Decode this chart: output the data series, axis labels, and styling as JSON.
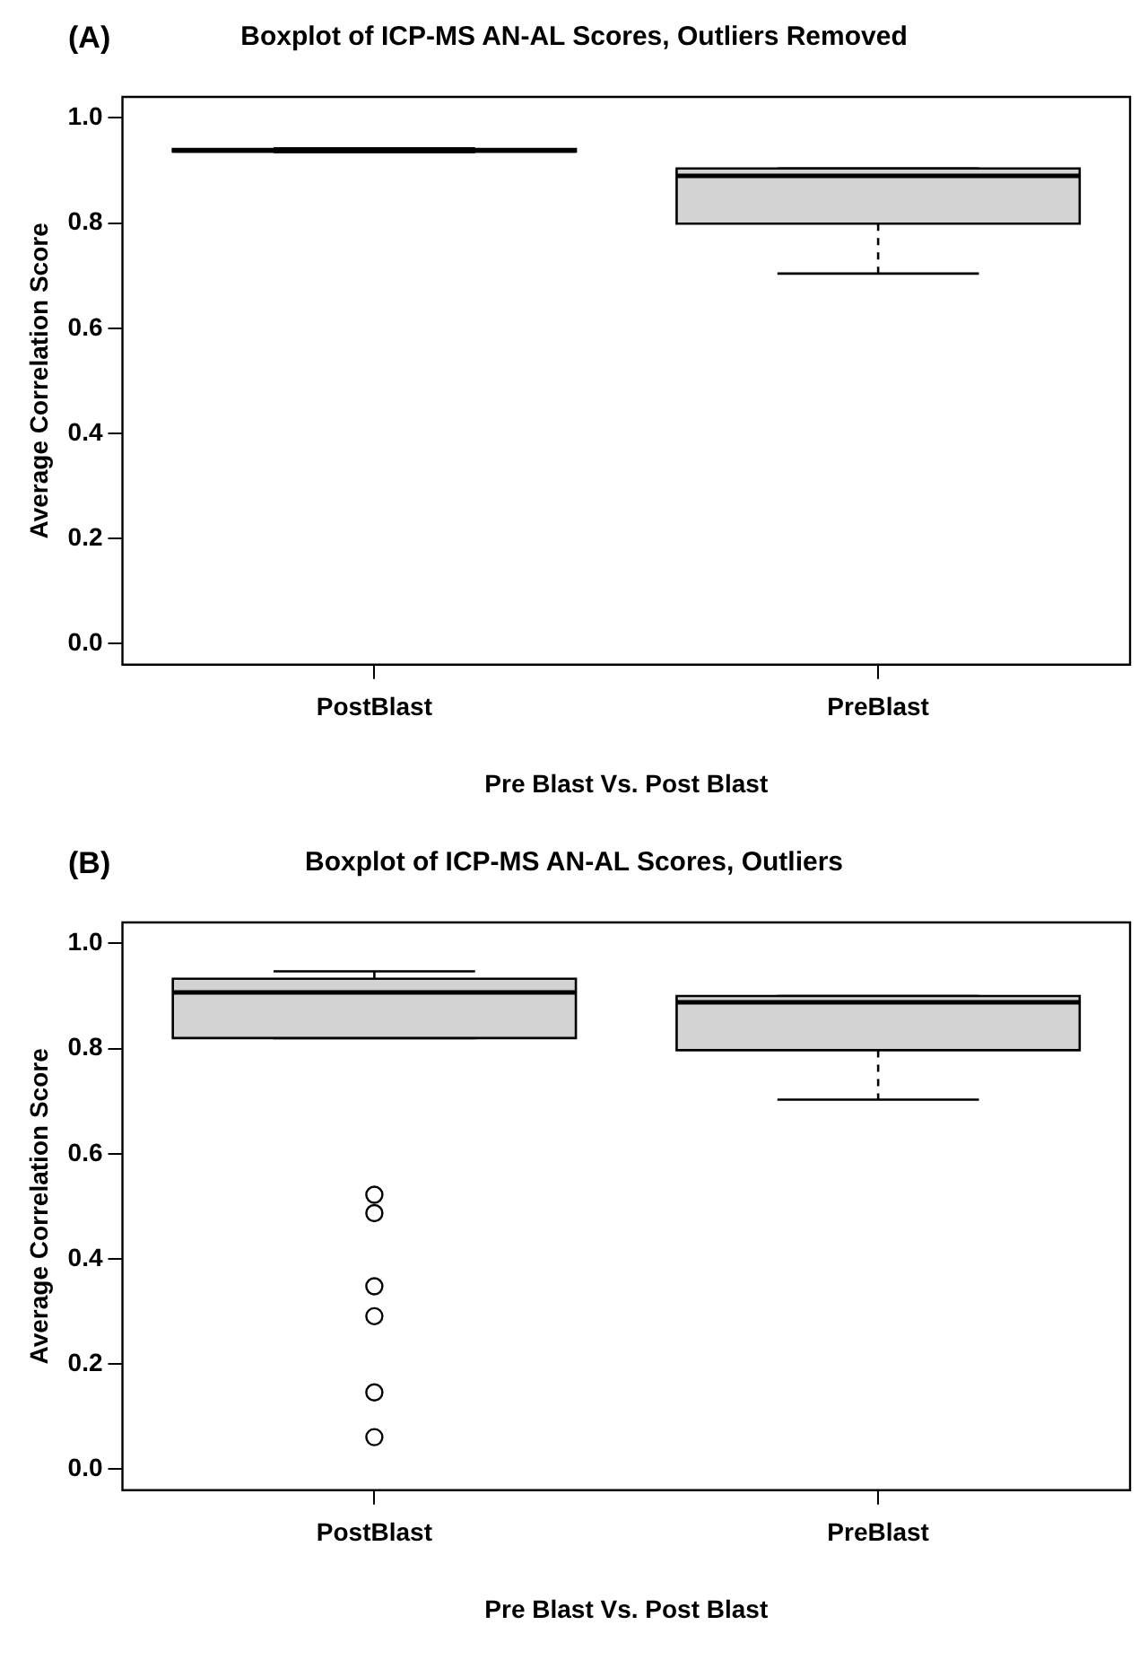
{
  "chart_data": [
    {
      "type": "box",
      "title": "Boxplot of ICP-MS AN-AL Scores, Outliers Removed",
      "annotations": [
        "(A)"
      ],
      "xlabel": "Pre Blast Vs. Post Blast",
      "ylabel": "Average Correlation Score",
      "categories": [
        "PostBlast",
        "PreBlast"
      ],
      "ylim": [
        -0.04,
        1.04
      ],
      "yticks": [
        {
          "value": 0,
          "label": "0.0"
        },
        {
          "value": 0.2,
          "label": "0.2"
        },
        {
          "value": 0.4,
          "label": "0.4"
        },
        {
          "value": 0.6,
          "label": "0.6"
        },
        {
          "value": 0.8,
          "label": "0.8"
        },
        {
          "value": 1,
          "label": "1.0"
        }
      ],
      "grid": false,
      "legend": false,
      "series": [
        {
          "color": "#d3d3d3",
          "boxes": [
            {
              "low": 0.935,
              "q1": 0.936,
              "median": 0.938,
              "q3": 0.941,
              "high": 0.942
            },
            {
              "low": 0.704,
              "q1": 0.799,
              "median": 0.89,
              "q3": 0.904,
              "high": 0.904
            }
          ]
        }
      ]
    },
    {
      "type": "box",
      "title": "Boxplot of ICP-MS AN-AL Scores, Outliers",
      "annotations": [
        "(B)"
      ],
      "xlabel": "Pre Blast Vs. Post Blast",
      "ylabel": "Average Correlation Score",
      "categories": [
        "PostBlast",
        "PreBlast"
      ],
      "ylim": [
        -0.04,
        1.04
      ],
      "yticks": [
        {
          "value": 0,
          "label": "0.0"
        },
        {
          "value": 0.2,
          "label": "0.2"
        },
        {
          "value": 0.4,
          "label": "0.4"
        },
        {
          "value": 0.6,
          "label": "0.6"
        },
        {
          "value": 0.8,
          "label": "0.8"
        },
        {
          "value": 1,
          "label": "1.0"
        }
      ],
      "grid": false,
      "legend": false,
      "series": [
        {
          "color": "#d3d3d3",
          "boxes": [
            {
              "low": 0.82,
              "q1": 0.82,
              "median": 0.907,
              "q3": 0.933,
              "high": 0.947,
              "outliers": [
                0.522,
                0.487,
                0.348,
                0.291,
                0.146,
                0.061
              ]
            },
            {
              "low": 0.703,
              "q1": 0.797,
              "median": 0.888,
              "q3": 0.9,
              "high": 0.9
            }
          ]
        }
      ]
    }
  ]
}
